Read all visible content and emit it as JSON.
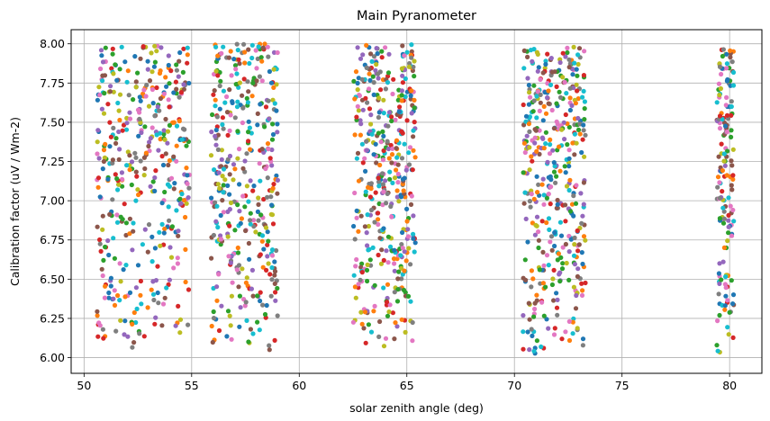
{
  "chart_data": {
    "type": "scatter",
    "title": "Main Pyranometer",
    "xlabel": "solar zenith angle (deg)",
    "ylabel": "Calibration factor (uV / Wm-2)",
    "xlim": [
      49.4,
      81.5
    ],
    "ylim": [
      5.9,
      8.09
    ],
    "xticks": [
      50,
      55,
      60,
      65,
      70,
      75,
      80
    ],
    "yticks": [
      6.0,
      6.25,
      6.5,
      6.75,
      7.0,
      7.25,
      7.5,
      7.75,
      8.0
    ],
    "xtick_labels": [
      "50",
      "55",
      "60",
      "65",
      "70",
      "75",
      "80"
    ],
    "ytick_labels": [
      "6.00",
      "6.25",
      "6.50",
      "6.75",
      "7.00",
      "7.25",
      "7.50",
      "7.75",
      "8.00"
    ],
    "grid": true,
    "legend": "none",
    "palette": [
      "#1f77b4",
      "#ff7f0e",
      "#2ca02c",
      "#d62728",
      "#9467bd",
      "#8c564b",
      "#e377c2",
      "#7f7f7f",
      "#bcbd22",
      "#17becf"
    ],
    "clusters": [
      {
        "x_range": [
          50.6,
          54.9
        ],
        "y_range": [
          6.06,
          7.99
        ],
        "n": 420
      },
      {
        "x_range": [
          55.9,
          59.0
        ],
        "y_range": [
          6.02,
          8.0
        ],
        "n": 380
      },
      {
        "x_range": [
          62.5,
          65.4
        ],
        "y_range": [
          6.06,
          8.0
        ],
        "n": 430
      },
      {
        "x_range": [
          70.4,
          73.3
        ],
        "y_range": [
          6.01,
          7.98
        ],
        "n": 420
      },
      {
        "x_range": [
          79.4,
          80.2
        ],
        "y_range": [
          6.01,
          7.99
        ],
        "n": 160
      }
    ]
  }
}
